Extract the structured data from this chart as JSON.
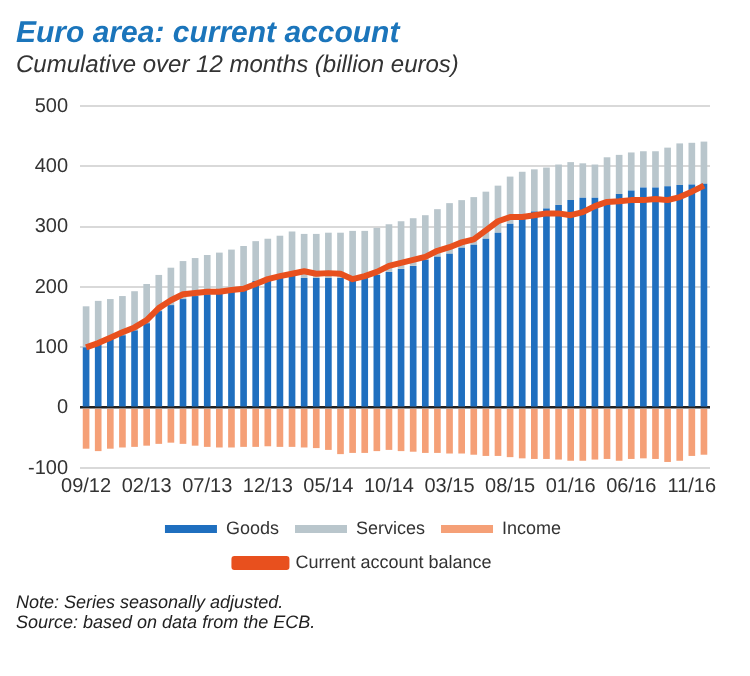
{
  "chart_data": {
    "type": "bar",
    "title": "Euro area: current account",
    "subtitle": "Cumulative over 12 months (billion euros)",
    "categories": [
      "09/12",
      null,
      null,
      null,
      null,
      "02/13",
      null,
      null,
      null,
      null,
      "07/13",
      null,
      null,
      null,
      null,
      "12/13",
      null,
      null,
      null,
      null,
      "05/14",
      null,
      null,
      null,
      null,
      "10/14",
      null,
      null,
      null,
      null,
      "03/15",
      null,
      null,
      null,
      null,
      "08/15",
      null,
      null,
      null,
      null,
      "01/16",
      null,
      null,
      null,
      null,
      "06/16",
      null,
      null,
      null,
      null,
      "11/16",
      null
    ],
    "stacked": true,
    "series": [
      {
        "name": "Goods",
        "color": "#1f6fbf",
        "values": [
          100,
          105,
          115,
          120,
          128,
          140,
          160,
          170,
          180,
          185,
          188,
          190,
          195,
          200,
          210,
          212,
          215,
          220,
          215,
          215,
          215,
          215,
          215,
          215,
          220,
          225,
          230,
          235,
          245,
          250,
          255,
          265,
          270,
          280,
          290,
          305,
          315,
          325,
          330,
          336,
          344,
          348,
          348,
          344,
          354,
          360,
          365,
          365,
          367,
          369,
          370,
          371
        ]
      },
      {
        "name": "Services",
        "color": "#b9c6cc",
        "values": [
          68,
          72,
          65,
          65,
          65,
          65,
          60,
          62,
          63,
          63,
          65,
          67,
          67,
          68,
          66,
          68,
          70,
          72,
          73,
          73,
          75,
          75,
          78,
          78,
          78,
          79,
          79,
          79,
          74,
          79,
          84,
          79,
          79,
          78,
          78,
          78,
          76,
          70,
          68,
          67,
          63,
          57,
          55,
          71,
          65,
          63,
          60,
          60,
          64,
          69,
          69,
          70
        ]
      },
      {
        "name": "Income",
        "color": "#f5a077",
        "values": [
          -68,
          -72,
          -68,
          -66,
          -65,
          -63,
          -60,
          -58,
          -60,
          -63,
          -65,
          -66,
          -66,
          -65,
          -65,
          -64,
          -65,
          -65,
          -66,
          -67,
          -70,
          -77,
          -75,
          -75,
          -72,
          -70,
          -72,
          -73,
          -75,
          -75,
          -76,
          -76,
          -78,
          -80,
          -80,
          -82,
          -84,
          -85,
          -85,
          -86,
          -88,
          -88,
          -86,
          -85,
          -88,
          -85,
          -84,
          -85,
          -90,
          -88,
          -80,
          -78
        ]
      },
      {
        "name": "Current account balance",
        "type": "line",
        "color": "#e8501e",
        "values": [
          100,
          107,
          116,
          125,
          133,
          145,
          165,
          178,
          188,
          190,
          192,
          192,
          195,
          197,
          205,
          213,
          218,
          222,
          226,
          222,
          223,
          222,
          213,
          218,
          225,
          235,
          240,
          245,
          250,
          260,
          266,
          274,
          279,
          294,
          309,
          316,
          316,
          319,
          322,
          322,
          319,
          324,
          334,
          341,
          342,
          344,
          344,
          346,
          344,
          349,
          358,
          368
        ]
      }
    ],
    "ylim": [
      -100,
      500
    ],
    "yticks": [
      -100,
      0,
      100,
      200,
      300,
      400,
      500
    ],
    "grid": "y",
    "legend": "bottom",
    "marker": "none",
    "annotations": [
      "Note: Series seasonally adjusted.",
      "Source: based on data from the ECB."
    ]
  }
}
